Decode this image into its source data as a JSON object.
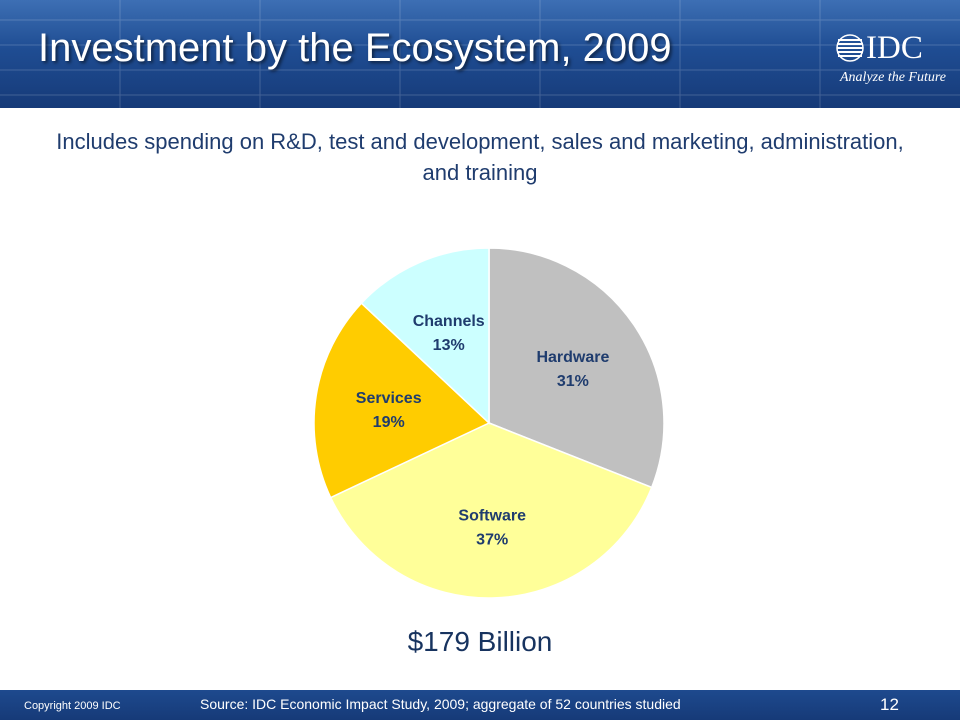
{
  "slide": {
    "title": "Investment by the Ecosystem, 2009",
    "subtitle": "Includes spending on R&D, test and development, sales and marketing, administration, and training",
    "total": "$179 Billion",
    "logo_text": "IDC",
    "logo_tagline": "Analyze the Future",
    "copyright": "Copyright 2009 IDC",
    "source": "Source:  IDC Economic Impact Study, 2009; aggregate of 52 countries studied",
    "page_number": "12"
  },
  "colors": {
    "header": "#1f4d93",
    "text_dark": "#1f3c6e"
  },
  "chart_data": {
    "type": "pie",
    "title": "",
    "slices": [
      {
        "label": "Hardware",
        "value": 31,
        "pct_label": "31%",
        "color": "#c0c0c0"
      },
      {
        "label": "Software",
        "value": 37,
        "pct_label": "37%",
        "color": "#ffff99"
      },
      {
        "label": "Services",
        "value": 19,
        "pct_label": "19%",
        "color": "#ffcc00"
      },
      {
        "label": "Channels",
        "value": 13,
        "pct_label": "13%",
        "color": "#ccffff"
      }
    ]
  }
}
